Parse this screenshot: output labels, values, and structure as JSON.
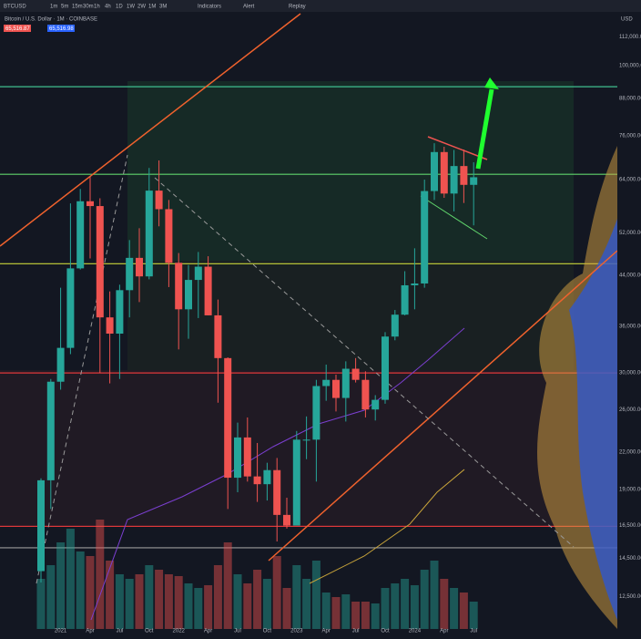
{
  "toolbar": {
    "symbol": "BTCUSD",
    "intervals": [
      "1m",
      "5m",
      "15m",
      "30m",
      "1h",
      "4h",
      "1D",
      "1W",
      "2W",
      "1M",
      "3M"
    ],
    "buttons": [
      "Indicators",
      "Alert",
      "Replay"
    ],
    "currency": "USD"
  },
  "chart_data": {
    "type": "candlestick",
    "title": "Bitcoin / U.S. Dollar · 1M · COINBASE",
    "bid": "65,516.87",
    "ask": "65,516.98",
    "categories": [
      null,
      null,
      "2021",
      null,
      null,
      "Apr",
      null,
      null,
      "Jul",
      null,
      null,
      "Oct",
      null,
      null,
      "2022",
      null,
      null,
      "Apr",
      null,
      null,
      "Jul",
      null,
      null,
      "Oct",
      null,
      null,
      "2023",
      null,
      null,
      "Apr",
      null,
      null,
      "Jul",
      null,
      null,
      "Oct",
      null,
      null,
      "2024",
      null,
      null,
      "Apr",
      null,
      null,
      "Jul"
    ],
    "open": [
      13800,
      19700,
      28990,
      33100,
      45200,
      58800,
      57700,
      37300,
      35000,
      41500,
      47100,
      43800,
      61300,
      57000,
      46200,
      38500,
      43200,
      45500,
      37600,
      31800,
      19900,
      23300,
      20000,
      19400,
      20500,
      17200,
      16500,
      23100,
      23100,
      28500,
      29200,
      27200,
      30500,
      29200,
      26000,
      27000,
      34600,
      37700,
      42300,
      42600,
      61200,
      71300,
      60600,
      67500,
      62700
    ],
    "high": [
      19850,
      29300,
      41900,
      58300,
      61700,
      64800,
      59500,
      41300,
      42400,
      50500,
      52900,
      67000,
      69000,
      59100,
      48000,
      45800,
      48200,
      47400,
      40000,
      31900,
      24700,
      25200,
      22800,
      21100,
      21500,
      18400,
      23900,
      25300,
      29200,
      31000,
      29800,
      31400,
      31800,
      30200,
      27500,
      35200,
      38400,
      44700,
      48900,
      64000,
      73800,
      72800,
      71900,
      72000,
      68500
    ],
    "low": [
      13200,
      17600,
      28100,
      32300,
      45000,
      47000,
      30000,
      28800,
      29300,
      37300,
      39600,
      43300,
      53300,
      42000,
      32900,
      34300,
      37200,
      37600,
      26700,
      17600,
      18800,
      19600,
      18100,
      18200,
      15500,
      16300,
      16500,
      21400,
      19600,
      26900,
      25800,
      24800,
      28900,
      25200,
      24900,
      26600,
      34100,
      37600,
      38500,
      41900,
      59100,
      59600,
      56500,
      58400,
      53500
    ],
    "close": [
      19700,
      28990,
      33100,
      45200,
      58800,
      57700,
      37300,
      35000,
      41500,
      47100,
      43800,
      61300,
      57000,
      46200,
      38500,
      43200,
      45500,
      37600,
      31800,
      19900,
      23300,
      20000,
      19400,
      20500,
      17200,
      16500,
      23100,
      23100,
      28500,
      29200,
      27200,
      30500,
      29200,
      26000,
      27000,
      34600,
      37700,
      42300,
      42600,
      61200,
      71300,
      60600,
      67500,
      62700,
      64600
    ],
    "volume": [
      55,
      70,
      95,
      110,
      85,
      80,
      120,
      75,
      60,
      55,
      60,
      70,
      65,
      60,
      58,
      50,
      45,
      48,
      70,
      95,
      60,
      50,
      65,
      55,
      80,
      45,
      70,
      55,
      75,
      40,
      35,
      38,
      30,
      30,
      28,
      45,
      50,
      55,
      48,
      65,
      75,
      55,
      45,
      40,
      30
    ],
    "up_color": "#26a69a",
    "down_color": "#ef5350",
    "levels": [
      {
        "value": 92100,
        "color": "#3fbf8f"
      },
      {
        "value": 65350,
        "color": "#5fd36b"
      },
      {
        "value": 46030,
        "color": "#c8d43a"
      },
      {
        "value": 30000,
        "color": "#e0383a"
      },
      {
        "value": 16450,
        "color": "#e0383a"
      },
      {
        "value": 15120,
        "color": "#9a9a9a"
      }
    ],
    "log_scale": true,
    "ylim": [
      11000,
      115000
    ],
    "yticks": [
      {
        "value": 112000,
        "label": "112,000.00"
      },
      {
        "value": 100000,
        "label": "100,000.00"
      },
      {
        "value": 88000,
        "label": "88,000.00"
      },
      {
        "value": 76000,
        "label": "76,000.00"
      },
      {
        "value": 64000,
        "label": "64,000.00"
      },
      {
        "value": 52000,
        "label": "52,000.00"
      },
      {
        "value": 44000,
        "label": "44,000.00"
      },
      {
        "value": 36000,
        "label": "36,000.00"
      },
      {
        "value": 30000,
        "label": "30,000.00"
      },
      {
        "value": 26000,
        "label": "26,000.00"
      },
      {
        "value": 22000,
        "label": "22,000.00"
      },
      {
        "value": 19000,
        "label": "19,000.00"
      },
      {
        "value": 16500,
        "label": "16,500.00"
      },
      {
        "value": 14500,
        "label": "14,500.00"
      },
      {
        "value": 12500,
        "label": "12,500.00"
      }
    ],
    "grid": true
  }
}
